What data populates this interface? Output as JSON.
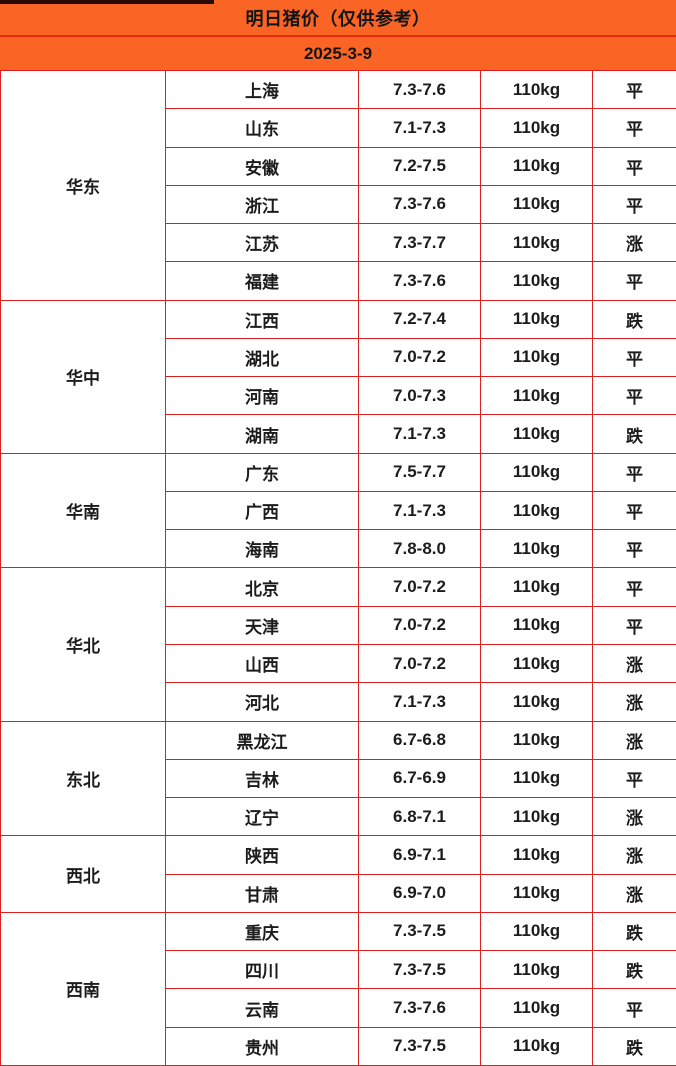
{
  "header": {
    "title": "明日猪价（仅供参考）",
    "date": "2025-3-9"
  },
  "colors": {
    "accent_orange": "#fa6526",
    "title_divider_red": "#e22d12",
    "table_border_red": "#dc2020",
    "trend_up_red": "#e62222",
    "trend_down_green": "#53ae53",
    "trend_flat_black": "#1c1c1c"
  },
  "table": {
    "columns": [
      "region",
      "province",
      "price_range",
      "weight",
      "trend"
    ],
    "regions": [
      {
        "name": "华东",
        "rows": [
          {
            "province": "上海",
            "price": "7.3-7.6",
            "weight": "110kg",
            "trend": "平"
          },
          {
            "province": "山东",
            "price": "7.1-7.3",
            "weight": "110kg",
            "trend": "平"
          },
          {
            "province": "安徽",
            "price": "7.2-7.5",
            "weight": "110kg",
            "trend": "平"
          },
          {
            "province": "浙江",
            "price": "7.3-7.6",
            "weight": "110kg",
            "trend": "平"
          },
          {
            "province": "江苏",
            "price": "7.3-7.7",
            "weight": "110kg",
            "trend": "涨"
          },
          {
            "province": "福建",
            "price": "7.3-7.6",
            "weight": "110kg",
            "trend": "平"
          }
        ]
      },
      {
        "name": "华中",
        "rows": [
          {
            "province": "江西",
            "price": "7.2-7.4",
            "weight": "110kg",
            "trend": "跌"
          },
          {
            "province": "湖北",
            "price": "7.0-7.2",
            "weight": "110kg",
            "trend": "平"
          },
          {
            "province": "河南",
            "price": "7.0-7.3",
            "weight": "110kg",
            "trend": "平"
          },
          {
            "province": "湖南",
            "price": "7.1-7.3",
            "weight": "110kg",
            "trend": "跌"
          }
        ]
      },
      {
        "name": "华南",
        "rows": [
          {
            "province": "广东",
            "price": "7.5-7.7",
            "weight": "110kg",
            "trend": "平"
          },
          {
            "province": "广西",
            "price": "7.1-7.3",
            "weight": "110kg",
            "trend": "平"
          },
          {
            "province": "海南",
            "price": "7.8-8.0",
            "weight": "110kg",
            "trend": "平"
          }
        ]
      },
      {
        "name": "华北",
        "rows": [
          {
            "province": "北京",
            "price": "7.0-7.2",
            "weight": "110kg",
            "trend": "平"
          },
          {
            "province": "天津",
            "price": "7.0-7.2",
            "weight": "110kg",
            "trend": "平"
          },
          {
            "province": "山西",
            "price": "7.0-7.2",
            "weight": "110kg",
            "trend": "涨"
          },
          {
            "province": "河北",
            "price": "7.1-7.3",
            "weight": "110kg",
            "trend": "涨"
          }
        ]
      },
      {
        "name": "东北",
        "rows": [
          {
            "province": "黑龙江",
            "price": "6.7-6.8",
            "weight": "110kg",
            "trend": "涨"
          },
          {
            "province": "吉林",
            "price": "6.7-6.9",
            "weight": "110kg",
            "trend": "平"
          },
          {
            "province": "辽宁",
            "price": "6.8-7.1",
            "weight": "110kg",
            "trend": "涨"
          }
        ]
      },
      {
        "name": "西北",
        "rows": [
          {
            "province": "陕西",
            "price": "6.9-7.1",
            "weight": "110kg",
            "trend": "涨"
          },
          {
            "province": "甘肃",
            "price": "6.9-7.0",
            "weight": "110kg",
            "trend": "涨"
          }
        ]
      },
      {
        "name": "西南",
        "rows": [
          {
            "province": "重庆",
            "price": "7.3-7.5",
            "weight": "110kg",
            "trend": "跌"
          },
          {
            "province": "四川",
            "price": "7.3-7.5",
            "weight": "110kg",
            "trend": "跌"
          },
          {
            "province": "云南",
            "price": "7.3-7.6",
            "weight": "110kg",
            "trend": "平"
          },
          {
            "province": "贵州",
            "price": "7.3-7.5",
            "weight": "110kg",
            "trend": "跌"
          }
        ]
      }
    ]
  }
}
